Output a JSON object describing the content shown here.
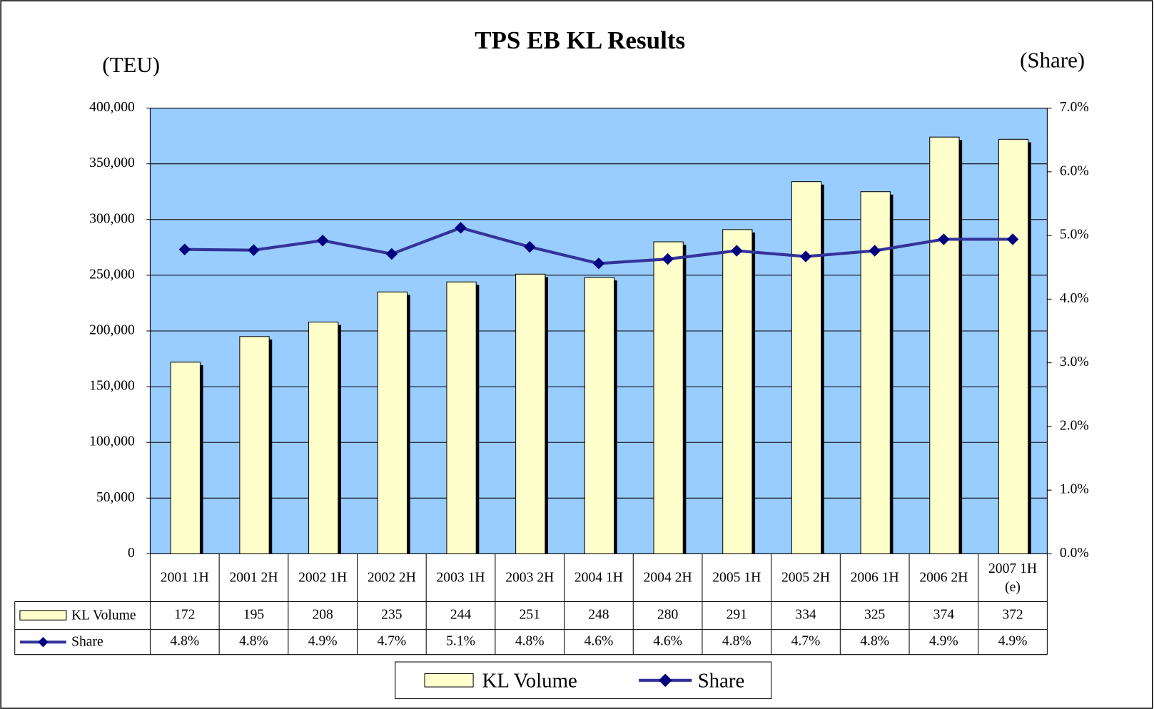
{
  "chart_data": {
    "type": "bar",
    "title": "TPS EB KL Results",
    "y_label": "(TEU)",
    "y2_label": "(Share)",
    "categories": [
      "2001 1H",
      "2001 2H",
      "2002 1H",
      "2002 2H",
      "2003 1H",
      "2003 2H",
      "2004 1H",
      "2004 2H",
      "2005 1H",
      "2005 2H",
      "2006 1H",
      "2006 2H",
      "2007 1H (e)"
    ],
    "series": [
      {
        "name": "KL Volume",
        "type": "bar",
        "color": "#ffffcc",
        "values": [
          172000,
          195000,
          208000,
          235000,
          244000,
          251000,
          248000,
          280000,
          291000,
          334000,
          325000,
          374000,
          372000
        ],
        "value_labels": [
          "172",
          "195",
          "208",
          "235",
          "244",
          "251",
          "248",
          "280",
          "291",
          "334",
          "325",
          "374",
          "372"
        ]
      },
      {
        "name": "Share",
        "type": "line",
        "axis": "y2",
        "color": "#333399",
        "marker_color": "#000080",
        "values": [
          4.78,
          4.77,
          4.92,
          4.71,
          5.12,
          4.82,
          4.56,
          4.63,
          4.76,
          4.67,
          4.76,
          4.94,
          4.94
        ],
        "value_labels": [
          "4.8%",
          "4.8%",
          "4.9%",
          "4.7%",
          "5.1%",
          "4.8%",
          "4.6%",
          "4.6%",
          "4.8%",
          "4.7%",
          "4.8%",
          "4.9%",
          "4.9%"
        ]
      }
    ],
    "ylim": [
      0,
      400000
    ],
    "yticks": [
      0,
      {
        "value": 50000,
        "label": "50,000"
      },
      {
        "value": 100000,
        "label": "100,000"
      },
      {
        "value": 150000,
        "label": "150,000"
      },
      {
        "value": 200000,
        "label": "200,000"
      },
      {
        "value": 250000,
        "label": "250,000"
      },
      {
        "value": 300000,
        "label": "300,000"
      },
      {
        "value": 350000,
        "label": "350,000"
      },
      {
        "value": 400000,
        "label": "400,000"
      }
    ],
    "y2lim": [
      0,
      7
    ],
    "y2ticks": [
      {
        "value": 0,
        "label": "0.0%"
      },
      {
        "value": 1,
        "label": "1.0%"
      },
      {
        "value": 2,
        "label": "2.0%"
      },
      {
        "value": 3,
        "label": "3.0%"
      },
      {
        "value": 4,
        "label": "4.0%"
      },
      {
        "value": 5,
        "label": "5.0%"
      },
      {
        "value": 6,
        "label": "6.0%"
      },
      {
        "value": 7,
        "label": "7.0%"
      }
    ],
    "grid": true,
    "plot_background": "#99ccff",
    "legend": "bottom"
  }
}
